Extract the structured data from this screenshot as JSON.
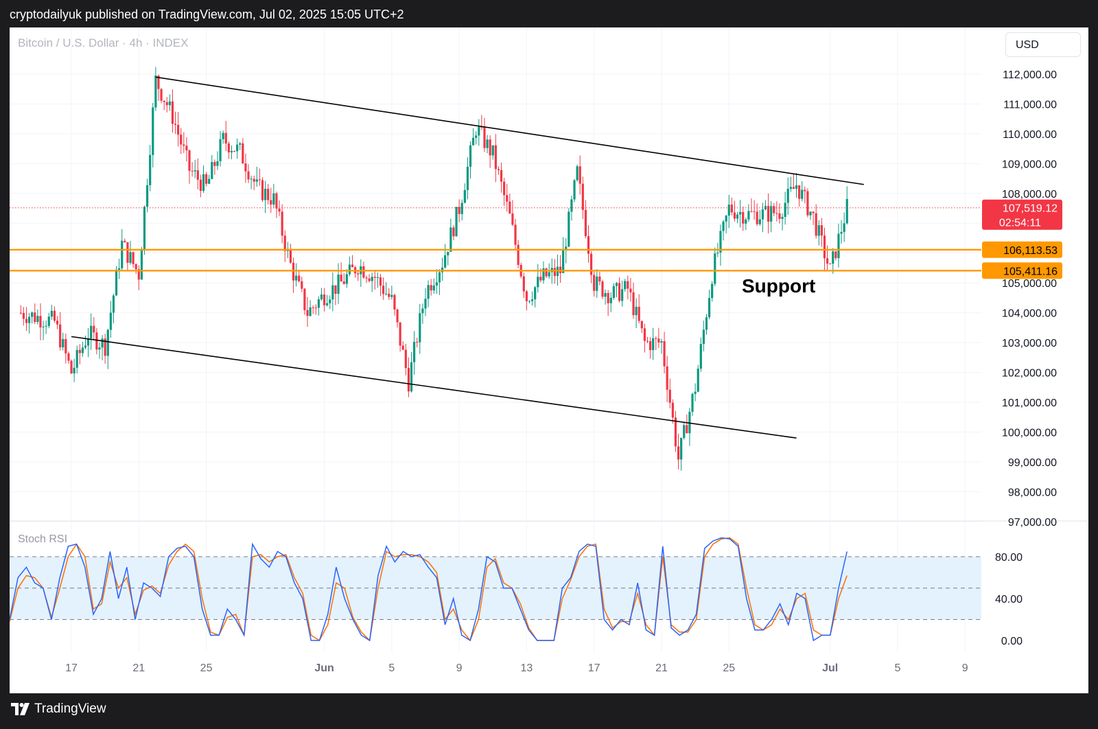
{
  "header": {
    "published_line": "cryptodailyuk published on TradingView.com, Jul 02, 2025 15:05 UTC+2"
  },
  "chart": {
    "symbol_line": "Bitcoin / U.S. Dollar · 4h · INDEX",
    "currency_button": "USD",
    "indicator_name": "Stoch RSI",
    "support_annotation": "Support",
    "last_price_label": "107,519.12",
    "countdown_label": "02:54:11",
    "support_upper_label": "106,113.53",
    "support_lower_label": "105,411.16",
    "price_ticks": [
      "112,000.00",
      "111,000.00",
      "110,000.00",
      "109,000.00",
      "108,000.00",
      "105,000.00",
      "104,000.00",
      "103,000.00",
      "102,000.00",
      "101,000.00",
      "100,000.00",
      "99,000.00",
      "98,000.00",
      "97,000.00"
    ],
    "rsi_ticks": [
      "80.00",
      "40.00",
      "0.00"
    ],
    "date_ticks": [
      "17",
      "21",
      "25",
      "Jun",
      "5",
      "9",
      "13",
      "17",
      "21",
      "25",
      "Jul",
      "5",
      "9"
    ]
  },
  "footer": {
    "brand": "TradingView"
  },
  "colors": {
    "up_candle": "#089981",
    "down_candle": "#f23645",
    "support_line": "#ff9800",
    "last_price": "#f23645",
    "stoch_k": "#2962ff",
    "stoch_d": "#ff6d00",
    "band_fill": "#e3f2fd"
  },
  "chart_data": [
    {
      "type": "candlestick",
      "title": "Bitcoin / U.S. Dollar · 4h · INDEX",
      "x_axis_labels": [
        "17",
        "21",
        "25",
        "Jun",
        "5",
        "9",
        "13",
        "17",
        "21",
        "25",
        "Jul",
        "5",
        "9"
      ],
      "ylim": [
        97000,
        112500
      ],
      "unit": "USD",
      "last_price": 107519.12,
      "support_levels": [
        106113.53,
        105411.16
      ],
      "close_path": [
        [
          "May 14",
          104000
        ],
        [
          "May 16",
          103700
        ],
        [
          "May 17",
          102000
        ],
        [
          "May 18",
          103300
        ],
        [
          "May 19",
          102900
        ],
        [
          "May 20",
          106300
        ],
        [
          "May 21",
          105300
        ],
        [
          "May 22",
          111800
        ],
        [
          "May 23",
          110600
        ],
        [
          "May 24",
          108800
        ],
        [
          "May 25",
          108200
        ],
        [
          "May 26",
          109800
        ],
        [
          "May 27",
          109400
        ],
        [
          "May 28",
          108200
        ],
        [
          "May 29",
          107800
        ],
        [
          "May 30",
          105600
        ],
        [
          "May 31",
          104000
        ],
        [
          "Jun 01",
          104600
        ],
        [
          "Jun 02",
          105000
        ],
        [
          "Jun 03",
          105600
        ],
        [
          "Jun 04",
          105200
        ],
        [
          "Jun 05",
          104400
        ],
        [
          "Jun 06",
          101700
        ],
        [
          "Jun 07",
          104700
        ],
        [
          "Jun 08",
          105700
        ],
        [
          "Jun 09",
          107500
        ],
        [
          "Jun 10",
          110200
        ],
        [
          "Jun 11",
          109300
        ],
        [
          "Jun 12",
          107200
        ],
        [
          "Jun 13",
          104500
        ],
        [
          "Jun 14",
          105200
        ],
        [
          "Jun 15",
          105400
        ],
        [
          "Jun 16",
          108700
        ],
        [
          "Jun 17",
          105000
        ],
        [
          "Jun 18",
          104600
        ],
        [
          "Jun 19",
          104800
        ],
        [
          "Jun 20",
          103000
        ],
        [
          "Jun 21",
          103000
        ],
        [
          "Jun 22",
          99100
        ],
        [
          "Jun 23",
          101500
        ],
        [
          "Jun 24",
          105300
        ],
        [
          "Jun 25",
          107500
        ],
        [
          "Jun 26",
          107300
        ],
        [
          "Jun 27",
          107300
        ],
        [
          "Jun 28",
          107400
        ],
        [
          "Jun 29",
          108300
        ],
        [
          "Jun 30",
          107200
        ],
        [
          "Jul 01",
          105400
        ],
        [
          "Jul 02",
          107519.12
        ]
      ],
      "trendlines": [
        {
          "name": "upper channel",
          "from": [
            "May 22",
            111900
          ],
          "to": [
            "Jul 03",
            108300
          ]
        },
        {
          "name": "lower channel",
          "from": [
            "May 17",
            103200
          ],
          "to": [
            "Jun 29",
            99800
          ]
        }
      ]
    },
    {
      "type": "line",
      "title": "Stoch RSI",
      "ylim": [
        0,
        100
      ],
      "bands": [
        80,
        50,
        20
      ],
      "series": [
        {
          "name": "K",
          "values": [
            20,
            60,
            70,
            55,
            50,
            20,
            60,
            90,
            92,
            70,
            25,
            40,
            85,
            40,
            70,
            20,
            55,
            50,
            42,
            80,
            88,
            90,
            80,
            30,
            5,
            5,
            30,
            20,
            5,
            92,
            78,
            70,
            85,
            80,
            55,
            40,
            0,
            0,
            25,
            70,
            40,
            20,
            5,
            0,
            62,
            90,
            75,
            85,
            80,
            82,
            70,
            60,
            15,
            40,
            5,
            0,
            30,
            80,
            75,
            50,
            50,
            30,
            10,
            0,
            0,
            0,
            50,
            60,
            85,
            92,
            90,
            20,
            10,
            20,
            15,
            55,
            10,
            5,
            90,
            12,
            5,
            10,
            25,
            88,
            95,
            98,
            97,
            90,
            40,
            10,
            10,
            20,
            35,
            15,
            45,
            40,
            0,
            5,
            5,
            50,
            85
          ]
        },
        {
          "name": "D",
          "values": [
            18,
            50,
            62,
            60,
            50,
            22,
            50,
            80,
            92,
            80,
            30,
            35,
            75,
            50,
            60,
            25,
            48,
            52,
            45,
            72,
            85,
            92,
            85,
            40,
            8,
            5,
            22,
            25,
            5,
            80,
            82,
            75,
            80,
            82,
            60,
            45,
            5,
            0,
            15,
            55,
            50,
            22,
            8,
            0,
            50,
            85,
            80,
            82,
            82,
            80,
            75,
            65,
            20,
            30,
            10,
            0,
            20,
            70,
            78,
            55,
            50,
            35,
            12,
            0,
            0,
            0,
            40,
            58,
            80,
            90,
            92,
            30,
            12,
            18,
            18,
            45,
            15,
            5,
            80,
            15,
            8,
            8,
            20,
            80,
            92,
            97,
            98,
            92,
            50,
            15,
            10,
            15,
            30,
            20,
            40,
            45,
            10,
            5,
            5,
            40,
            62
          ]
        }
      ]
    }
  ]
}
